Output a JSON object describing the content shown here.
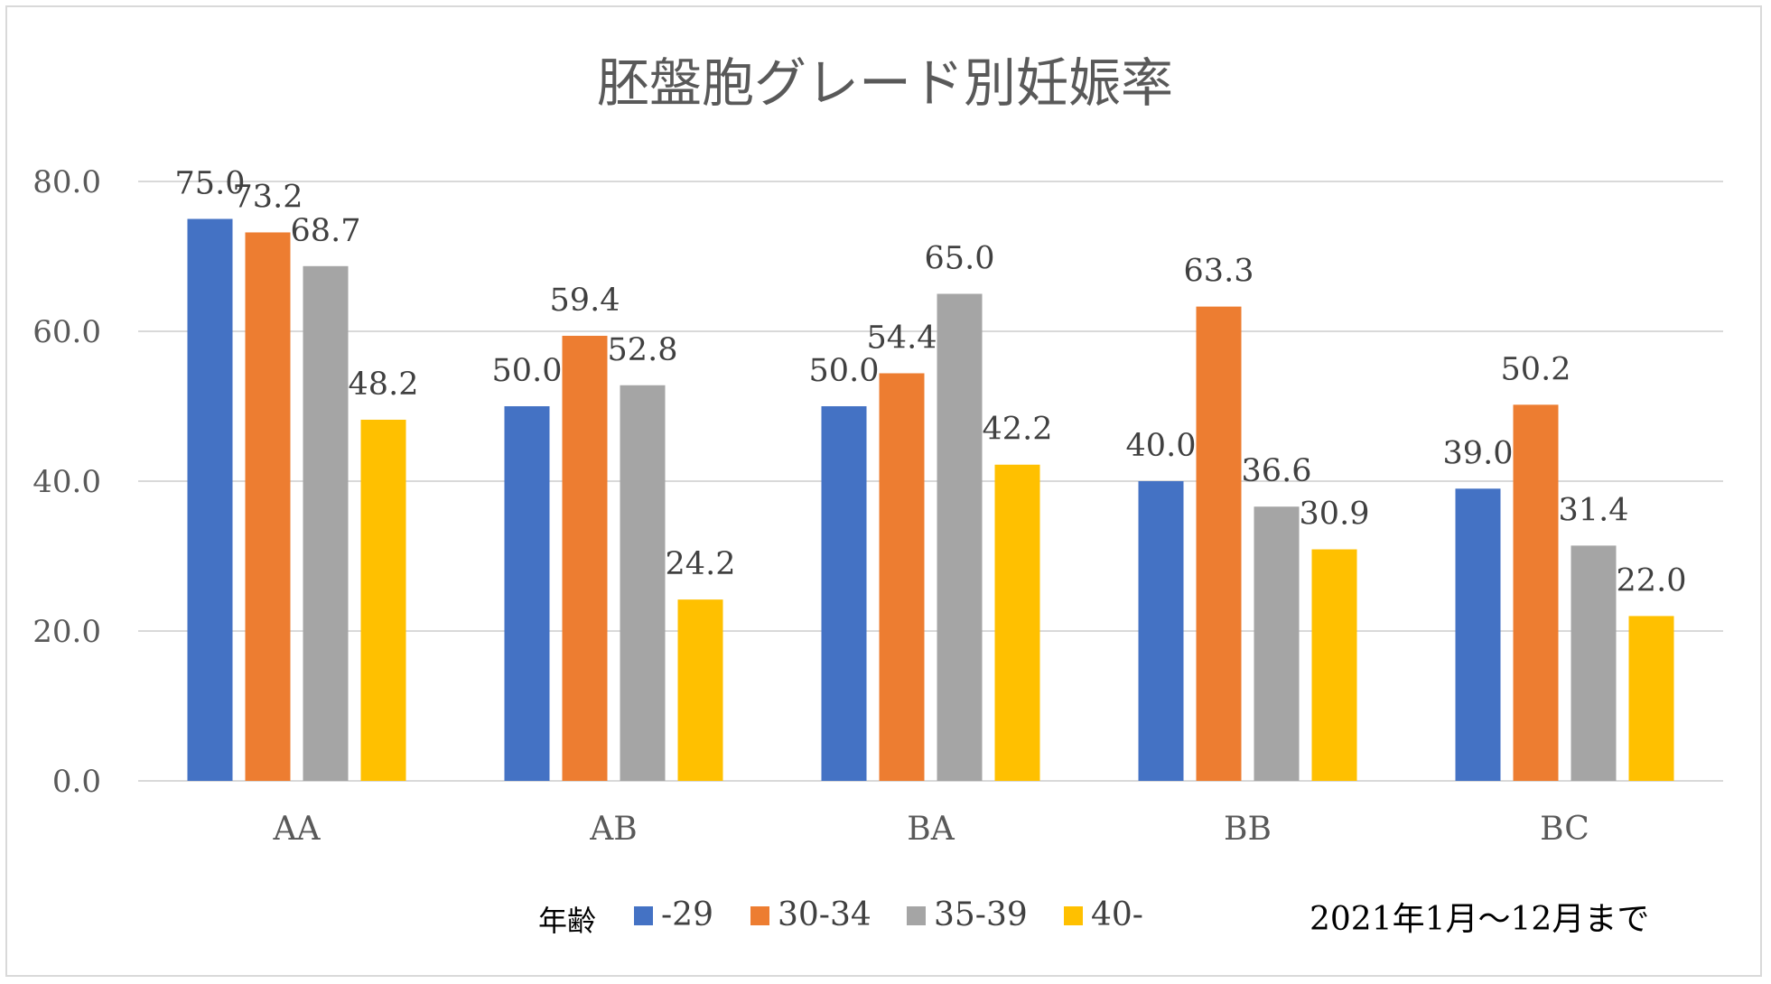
{
  "chart_data": {
    "type": "bar",
    "title": "胚盤胞グレード別妊娠率",
    "categories": [
      "AA",
      "AB",
      "BA",
      "BB",
      "BC"
    ],
    "series": [
      {
        "name": "-29",
        "color": "#4472c4",
        "values": [
          75.0,
          50.0,
          50.0,
          40.0,
          39.0
        ]
      },
      {
        "name": "30-34",
        "color": "#ed7d31",
        "values": [
          73.2,
          59.4,
          54.4,
          63.3,
          50.2
        ]
      },
      {
        "name": "35-39",
        "color": "#a5a5a5",
        "values": [
          68.7,
          52.8,
          65.0,
          36.6,
          31.4
        ]
      },
      {
        "name": "40-",
        "color": "#ffc000",
        "values": [
          48.2,
          24.2,
          42.2,
          30.9,
          22.0
        ]
      }
    ],
    "yticks": [
      "0.0",
      "20.0",
      "40.0",
      "60.0",
      "80.0"
    ],
    "ylim": [
      0,
      80
    ],
    "grid": true,
    "legend_title": "年齢",
    "legend_position": "bottom",
    "note": "2021年1月～12月まで"
  }
}
